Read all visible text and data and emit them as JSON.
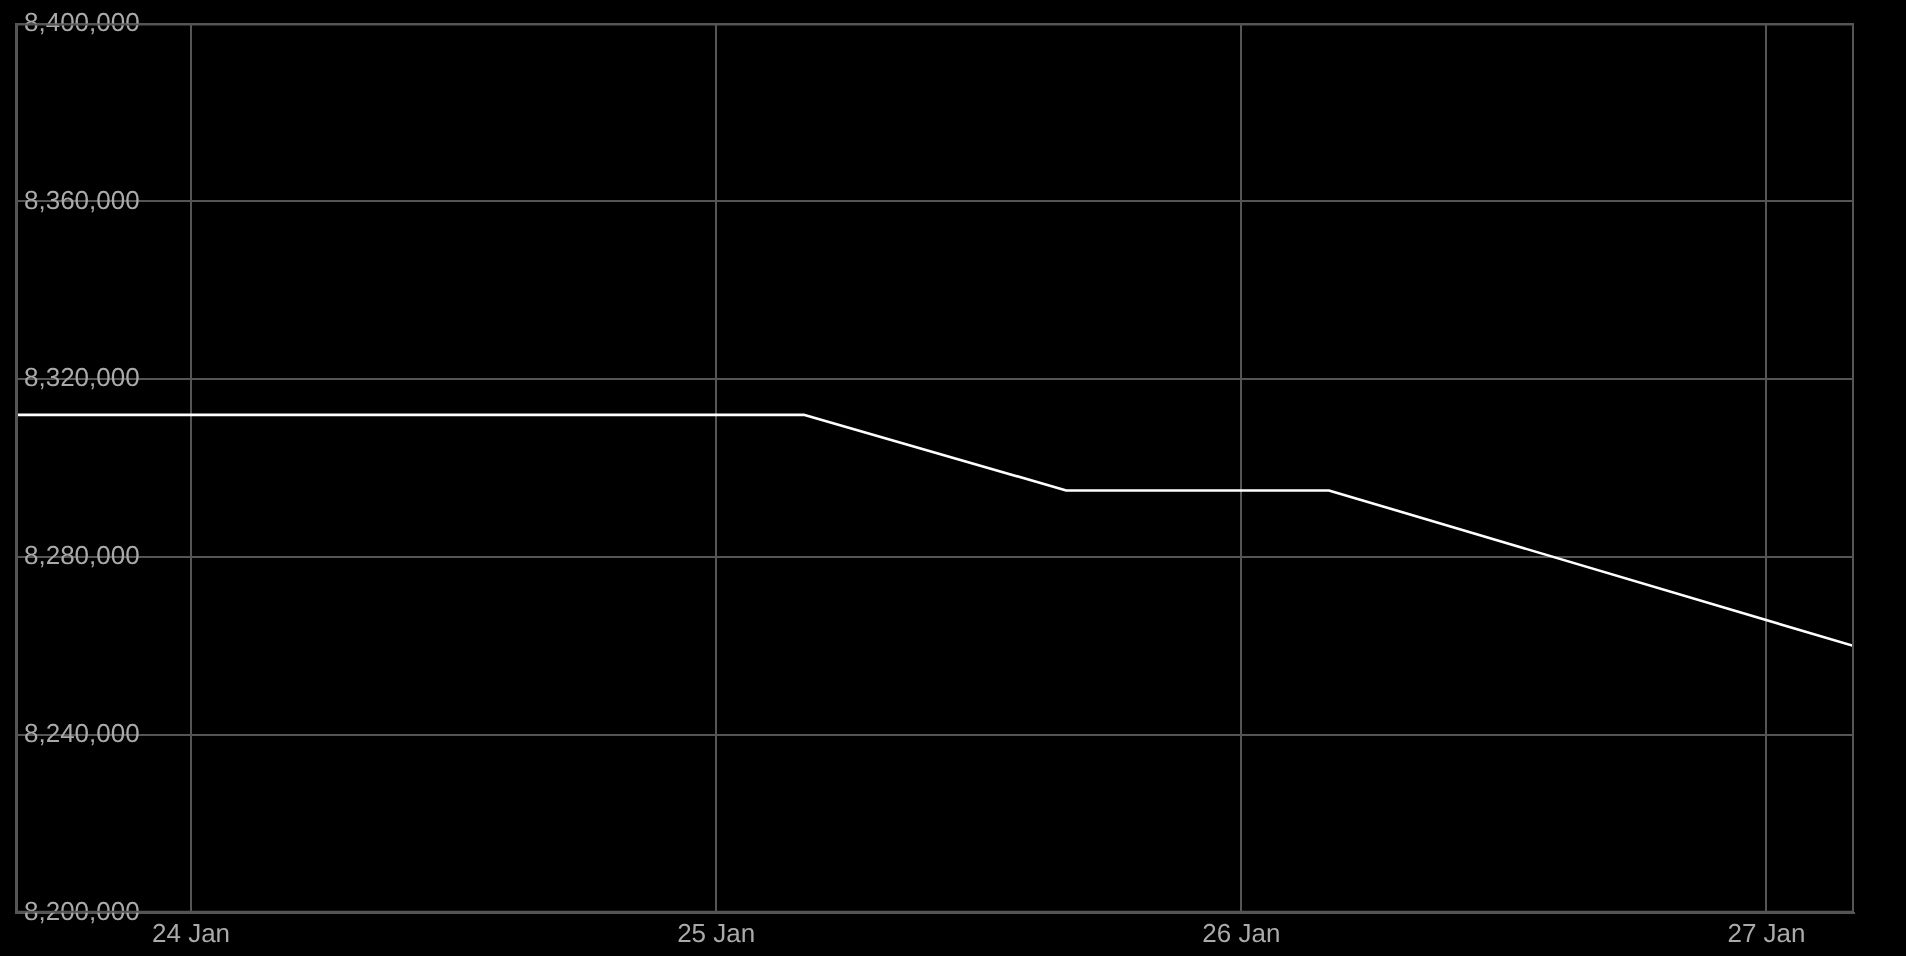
{
  "chart_data": {
    "type": "line",
    "x": [
      "--01-23T16:00",
      "--01-25T04:00",
      "--01-25T16:00",
      "--01-26T04:00",
      "--01-27T04:00"
    ],
    "series": [
      {
        "color": "#ffffff",
        "values": [
          8312000,
          8312000,
          8295000,
          8295000,
          8260000
        ]
      }
    ],
    "xlim": [
      "--01-23T16:00",
      "--01-27T04:00"
    ],
    "xticks": [
      {
        "value": "--01-24",
        "label": "24 Jan"
      },
      {
        "value": "--01-25",
        "label": "25 Jan"
      },
      {
        "value": "--01-26",
        "label": "26 Jan"
      },
      {
        "value": "--01-27",
        "label": "27 Jan"
      }
    ],
    "ylim": [
      8200000,
      8400000
    ],
    "yticks": [
      {
        "value": 8200000,
        "label": "8,200,000"
      },
      {
        "value": 8240000,
        "label": "8,240,000"
      },
      {
        "value": 8280000,
        "label": "8,280,000"
      },
      {
        "value": 8320000,
        "label": "8,320,000"
      },
      {
        "value": 8360000,
        "label": "8,360,000"
      },
      {
        "value": 8400000,
        "label": "8,400,000"
      }
    ],
    "grid": true,
    "legend": false,
    "marker": "none",
    "line_style": "solid"
  }
}
